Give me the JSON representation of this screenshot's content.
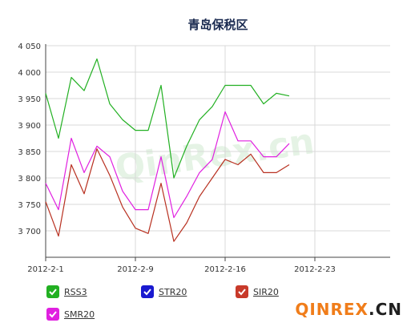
{
  "chart_data": {
    "type": "line",
    "title": "青岛保税区",
    "xlabel": "",
    "ylabel": "",
    "ylim": [
      3650,
      4050
    ],
    "yticks": [
      3700,
      3750,
      3800,
      3850,
      3900,
      3950,
      4000,
      4050
    ],
    "ytick_labels": [
      "3 700",
      "3 750",
      "3 800",
      "3 850",
      "3 900",
      "3 950",
      "4 000",
      "4 050"
    ],
    "xticks": [
      0,
      7,
      14,
      21
    ],
    "xtick_labels": [
      "2012-2-1",
      "2012-2-9",
      "2012-2-16",
      "2012-2-23"
    ],
    "grid": true,
    "legend_position": "bottom",
    "series": [
      {
        "name": "RSS3",
        "color": "#22b022",
        "visible": true,
        "values": [
          3960,
          3875,
          3990,
          3965,
          4025,
          3940,
          3910,
          3890,
          3890,
          3975,
          3800,
          3860,
          3910,
          3935,
          3975,
          3975,
          3975,
          3940,
          3960,
          3955
        ]
      },
      {
        "name": "STR20",
        "color": "#1a1ad0",
        "visible": false,
        "values": []
      },
      {
        "name": "SIR20",
        "color": "#b83020",
        "visible": true,
        "values": [
          3755,
          3690,
          3825,
          3770,
          3855,
          3805,
          3745,
          3705,
          3695,
          3790,
          3680,
          3715,
          3765,
          3800,
          3835,
          3825,
          3845,
          3810,
          3810,
          3825
        ]
      },
      {
        "name": "SMR20",
        "color": "#e020e0",
        "visible": true,
        "values": [
          3790,
          3740,
          3875,
          3810,
          3860,
          3840,
          3775,
          3740,
          3740,
          3840,
          3725,
          3765,
          3810,
          3835,
          3925,
          3870,
          3870,
          3840,
          3840,
          3865
        ]
      }
    ]
  },
  "watermark": "QinRex.cn",
  "brand": {
    "part1": "QINREX",
    "part2": ".CN"
  }
}
